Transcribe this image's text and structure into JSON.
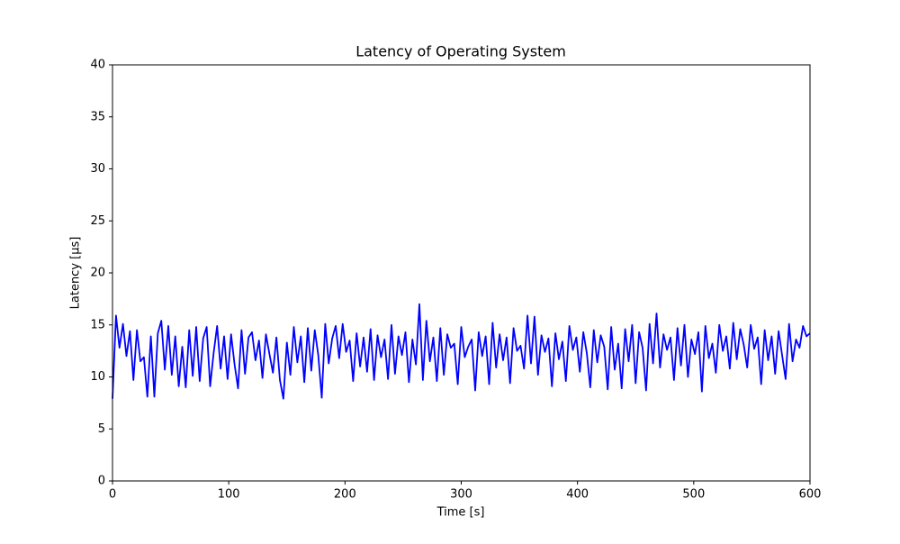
{
  "chart_data": {
    "type": "line",
    "title": "Latency of Operating System",
    "x_label": "Time [s]",
    "y_label": "Latency [µs]",
    "xlim": [
      0,
      600
    ],
    "ylim": [
      0,
      40
    ],
    "xticks": [
      0,
      100,
      200,
      300,
      400,
      500,
      600
    ],
    "yticks": [
      0,
      5,
      10,
      15,
      20,
      25,
      30,
      35,
      40
    ],
    "x": [
      0,
      3,
      6,
      9,
      12,
      15,
      18,
      21,
      24,
      27,
      30,
      33,
      36,
      39,
      42,
      45,
      48,
      51,
      54,
      57,
      60,
      63,
      66,
      69,
      72,
      75,
      78,
      81,
      84,
      87,
      90,
      93,
      96,
      99,
      102,
      105,
      108,
      111,
      114,
      117,
      120,
      123,
      126,
      129,
      132,
      135,
      138,
      141,
      144,
      147,
      150,
      153,
      156,
      159,
      162,
      165,
      168,
      171,
      174,
      177,
      180,
      183,
      186,
      189,
      192,
      195,
      198,
      201,
      204,
      207,
      210,
      213,
      216,
      219,
      222,
      225,
      228,
      231,
      234,
      237,
      240,
      243,
      246,
      249,
      252,
      255,
      258,
      261,
      264,
      267,
      270,
      273,
      276,
      279,
      282,
      285,
      288,
      291,
      294,
      297,
      300,
      303,
      306,
      309,
      312,
      315,
      318,
      321,
      324,
      327,
      330,
      333,
      336,
      339,
      342,
      345,
      348,
      351,
      354,
      357,
      360,
      363,
      366,
      369,
      372,
      375,
      378,
      381,
      384,
      387,
      390,
      393,
      396,
      399,
      402,
      405,
      408,
      411,
      414,
      417,
      420,
      423,
      426,
      429,
      432,
      435,
      438,
      441,
      444,
      447,
      450,
      453,
      456,
      459,
      462,
      465,
      468,
      471,
      474,
      477,
      480,
      483,
      486,
      489,
      492,
      495,
      498,
      501,
      504,
      507,
      510,
      513,
      516,
      519,
      522,
      525,
      528,
      531,
      534,
      537,
      540,
      543,
      546,
      549,
      552,
      555,
      558,
      561,
      564,
      567,
      570,
      573,
      576,
      579,
      582,
      585,
      588,
      591,
      594,
      597,
      600
    ],
    "series": [
      {
        "name": "Latency",
        "color": "#0000ff",
        "values": [
          7.9,
          15.9,
          12.8,
          15.1,
          12.0,
          14.4,
          9.7,
          14.5,
          11.5,
          11.9,
          8.1,
          13.9,
          8.1,
          14.2,
          15.4,
          10.7,
          14.9,
          10.2,
          13.9,
          9.1,
          12.9,
          9.0,
          14.5,
          10.1,
          14.8,
          9.6,
          13.7,
          14.8,
          9.1,
          12.3,
          14.9,
          10.8,
          13.9,
          9.8,
          14.1,
          11.2,
          8.9,
          14.5,
          10.3,
          13.8,
          14.3,
          11.6,
          13.5,
          9.9,
          14.1,
          12.2,
          10.4,
          13.8,
          9.7,
          7.9,
          13.3,
          10.2,
          14.8,
          11.4,
          13.9,
          9.5,
          14.7,
          10.6,
          14.5,
          12.1,
          8.0,
          15.1,
          11.3,
          13.7,
          14.9,
          11.8,
          15.1,
          12.4,
          13.5,
          9.6,
          14.2,
          11.0,
          13.8,
          10.5,
          14.6,
          9.7,
          14.0,
          11.9,
          13.6,
          9.8,
          15.0,
          10.3,
          13.9,
          12.1,
          14.3,
          9.5,
          13.6,
          11.2,
          17.0,
          9.7,
          15.4,
          11.5,
          13.8,
          9.6,
          14.7,
          10.2,
          14.1,
          12.8,
          13.2,
          9.3,
          14.8,
          11.9,
          12.9,
          13.6,
          8.7,
          14.3,
          12.0,
          13.9,
          9.3,
          15.2,
          10.9,
          14.1,
          11.6,
          13.8,
          9.4,
          14.7,
          12.5,
          13.0,
          10.8,
          15.9,
          11.3,
          15.8,
          10.2,
          14.0,
          12.4,
          13.7,
          9.1,
          14.2,
          11.7,
          13.4,
          9.6,
          14.9,
          12.6,
          13.8,
          10.5,
          14.3,
          12.3,
          9.0,
          14.5,
          11.4,
          14.0,
          12.9,
          8.8,
          14.8,
          10.7,
          13.2,
          8.9,
          14.6,
          11.5,
          15.0,
          9.4,
          14.3,
          12.8,
          8.7,
          15.1,
          11.3,
          16.1,
          10.9,
          14.1,
          12.6,
          13.8,
          9.7,
          14.7,
          11.1,
          15.0,
          10.0,
          13.6,
          12.2,
          14.3,
          8.6,
          14.9,
          11.8,
          13.2,
          10.4,
          15.0,
          12.5,
          13.9,
          10.8,
          15.2,
          11.7,
          14.6,
          13.1,
          10.9,
          15.0,
          12.7,
          13.8,
          9.3,
          14.5,
          11.6,
          13.9,
          10.3,
          14.4,
          12.1,
          9.8,
          15.1,
          11.5,
          13.6,
          12.8,
          14.9,
          13.9,
          14.2
        ]
      }
    ]
  }
}
